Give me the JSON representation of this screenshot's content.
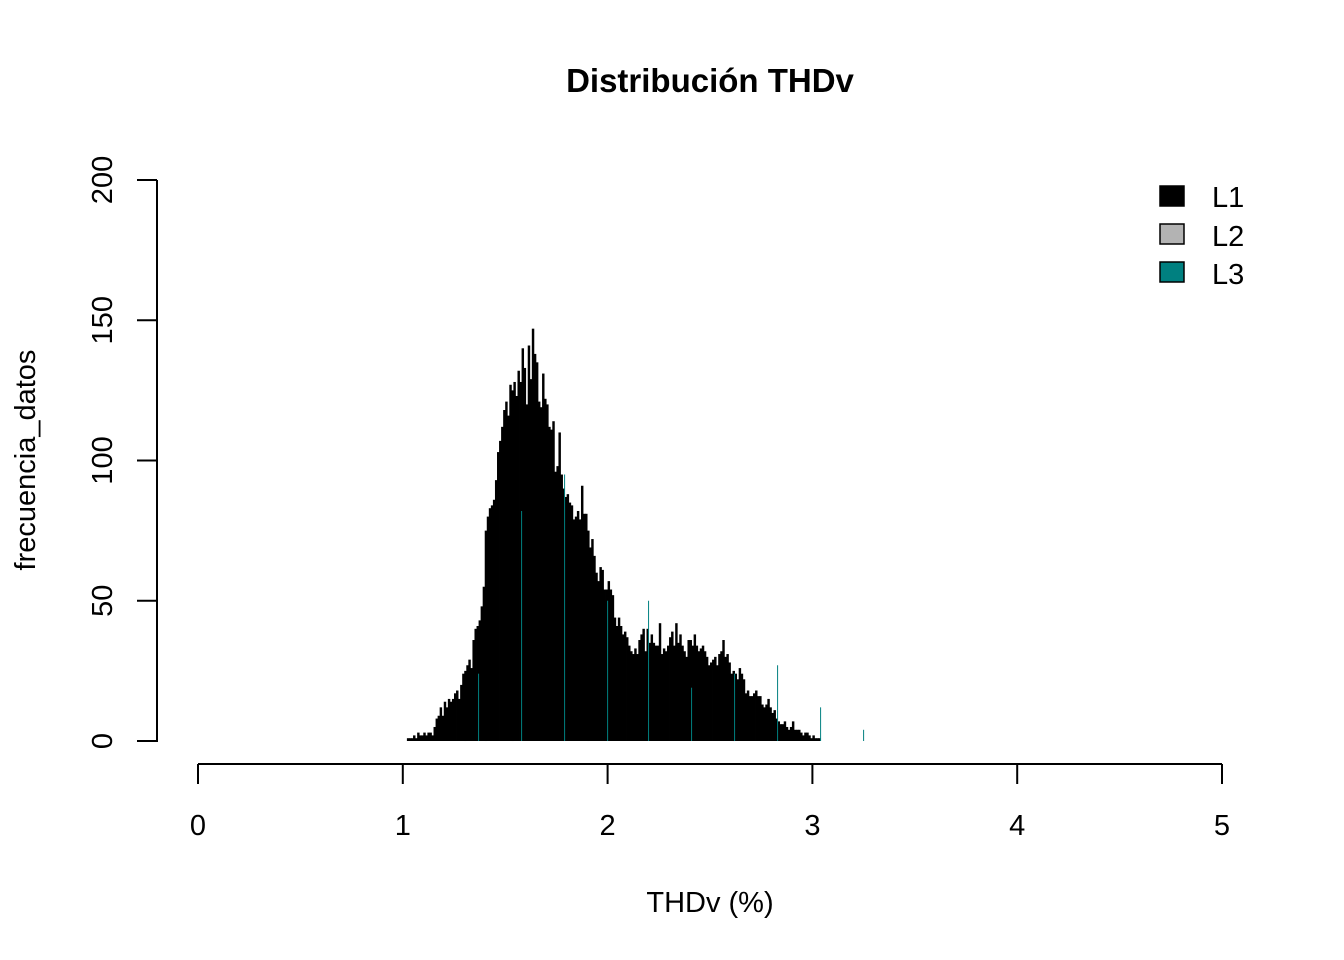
{
  "chart_data": {
    "type": "bar",
    "title": "Distribución THDv",
    "xlabel": "THDv (%)",
    "ylabel": "frecuencia_datos",
    "xlim": [
      0,
      5
    ],
    "ylim": [
      0,
      200
    ],
    "x_ticks": [
      "0",
      "1",
      "2",
      "3",
      "4",
      "5"
    ],
    "y_ticks": [
      "0",
      "50",
      "100",
      "150",
      "200"
    ],
    "grid": false,
    "legend_position": "top-right",
    "bin_width": 0.01,
    "x_start": 1.02,
    "series": [
      {
        "name": "L1",
        "color": "#000000",
        "values": [
          1,
          1,
          1,
          2,
          1,
          3,
          2,
          2,
          3,
          2,
          3,
          3,
          2,
          5,
          8,
          9,
          12,
          9,
          14,
          12,
          15,
          14,
          15,
          17,
          18,
          15,
          20,
          24,
          25,
          27,
          29,
          26,
          36,
          40,
          41,
          43,
          48,
          55,
          75,
          80,
          83,
          84,
          86,
          93,
          103,
          107,
          112,
          118,
          121,
          116,
          127,
          125,
          128,
          123,
          132,
          128,
          140,
          133,
          120,
          141,
          129,
          147,
          138,
          135,
          121,
          119,
          131,
          122,
          120,
          112,
          111,
          114,
          96,
          98,
          110,
          95,
          90,
          87,
          88,
          85,
          84,
          79,
          80,
          82,
          79,
          91,
          81,
          81,
          75,
          69,
          72,
          66,
          60,
          57,
          62,
          61,
          54,
          54,
          57,
          54,
          52,
          44,
          41,
          44,
          41,
          38,
          39,
          37,
          34,
          32,
          31,
          33,
          31,
          36,
          38,
          40,
          32,
          40,
          35,
          38,
          35,
          34,
          34,
          42,
          31,
          33,
          32,
          34,
          37,
          39,
          34,
          42,
          35,
          38,
          34,
          32,
          30,
          36,
          36,
          34,
          38,
          34,
          32,
          33,
          34,
          32,
          30,
          27,
          28,
          29,
          30,
          27,
          31,
          32,
          36,
          30,
          31,
          28,
          24,
          25,
          24,
          22,
          26,
          24,
          22,
          17,
          18,
          16,
          16,
          17,
          18,
          16,
          16,
          13,
          12,
          13,
          15,
          12,
          10,
          11,
          8,
          7,
          6,
          6,
          7,
          5,
          4,
          5,
          7,
          4,
          4,
          4,
          3,
          2,
          3,
          3,
          2,
          1,
          2,
          1,
          1,
          1
        ]
      },
      {
        "name": "L2",
        "color": "#b3b3b3",
        "values": []
      },
      {
        "name": "L3",
        "color": "#008080",
        "values": []
      }
    ]
  }
}
